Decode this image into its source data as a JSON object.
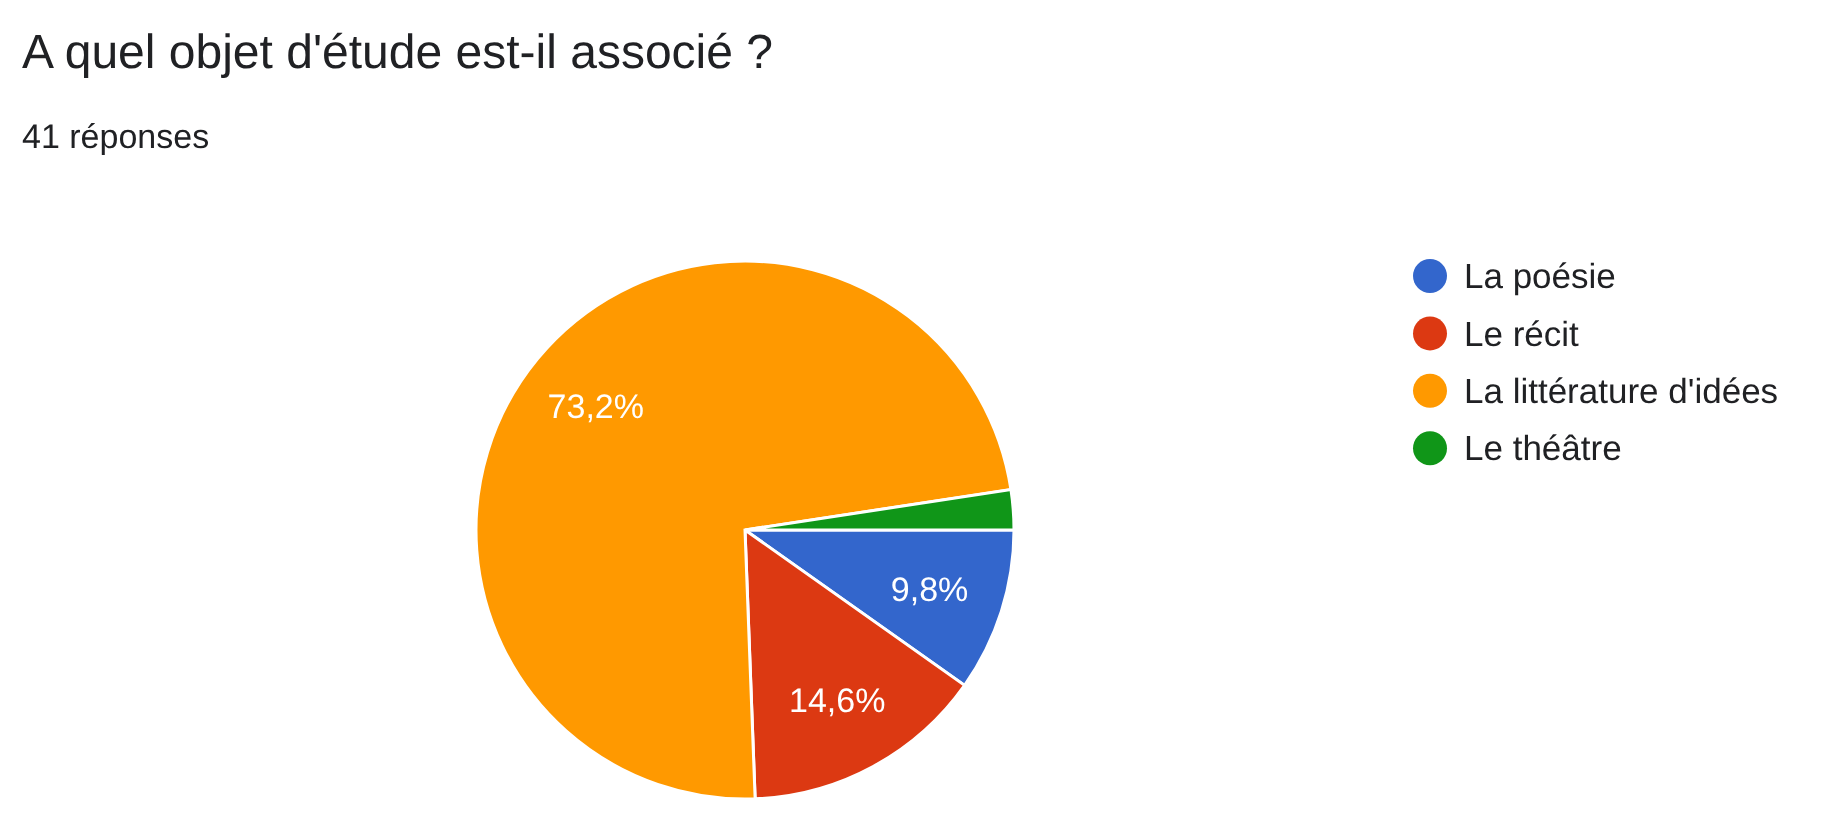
{
  "chart_data": {
    "type": "pie",
    "title": "A quel objet d'étude est-il associé ?",
    "subtitle": "41 réponses",
    "categories": [
      "La poésie",
      "Le récit",
      "La littérature d'idées",
      "Le théâtre"
    ],
    "values": [
      9.8,
      14.6,
      73.2,
      2.4
    ],
    "colors": [
      "#3366cc",
      "#dc3912",
      "#ff9900",
      "#109618"
    ],
    "value_labels": [
      "9,8%",
      "14,6%",
      "73,2%",
      null
    ],
    "legend": "right"
  }
}
